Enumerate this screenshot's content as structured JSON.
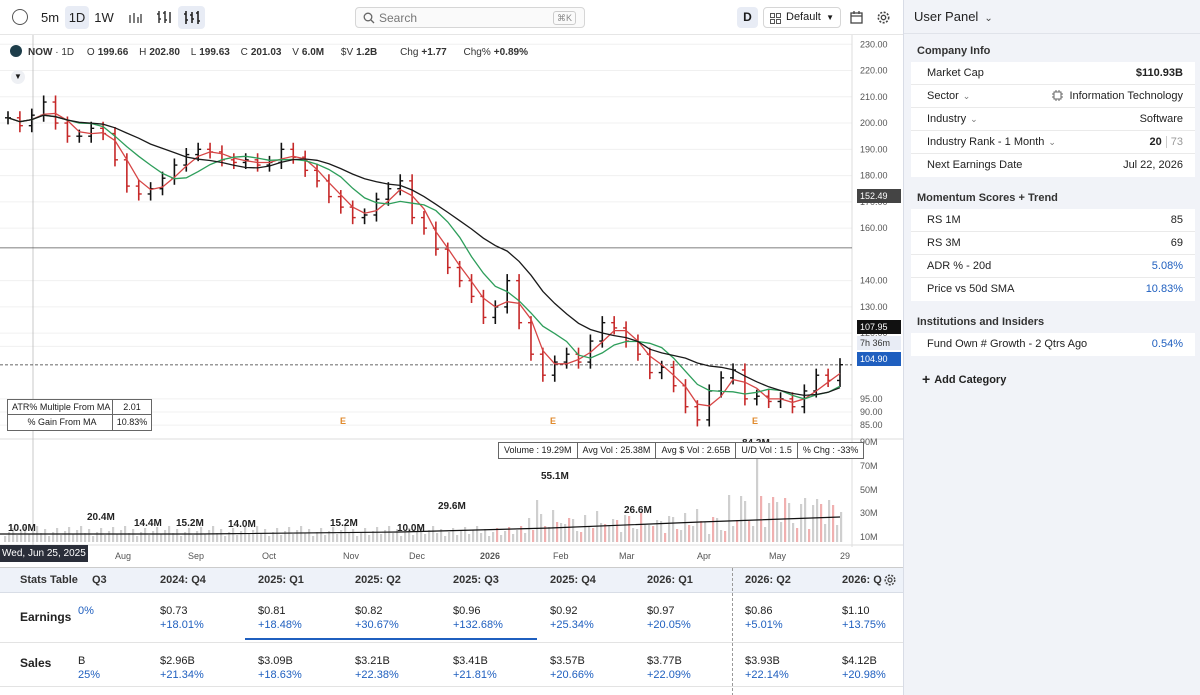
{
  "toolbar": {
    "timeframes": [
      "5m",
      "1D",
      "1W"
    ],
    "active_timeframe": "1D",
    "search_placeholder": "Search",
    "search_shortcut": "⌘K",
    "d_label": "D",
    "layout_label": "Default"
  },
  "legend": {
    "symbol": "NOW",
    "interval": "1D",
    "o_label": "O",
    "open": "199.66",
    "h_label": "H",
    "high": "202.80",
    "l_label": "L",
    "low": "199.63",
    "c_label": "C",
    "close": "201.03",
    "v_label": "V",
    "volume": "6.0M",
    "dv_label": "$V",
    "dollar_volume": "1.2B",
    "chg_label": "Chg",
    "chg": "+1.77",
    "chgp_label": "Chg%",
    "chg_pct": "+0.89%"
  },
  "atr_box": {
    "row1_label": "ATR% Multiple From MA",
    "row1_value": "2.01",
    "row2_label": "% Gain From MA",
    "row2_value": "10.83%"
  },
  "volume_box": {
    "volume": "Volume : 19.29M",
    "avg_vol": "Avg Vol : 25.38M",
    "avg_dollar_vol": "Avg $ Vol : 2.65B",
    "ud_vol": "U/D Vol : 1.5",
    "pct_chg": "% Chg : -33%"
  },
  "earnings_markers": [
    "E",
    "E",
    "E",
    "E"
  ],
  "crosshair_date": "Wed, Jun 25, 2025",
  "price_tags": {
    "level_line": "152.49",
    "last_price": "107.95",
    "countdown": "7h 36m",
    "ma_value": "104.90"
  },
  "colors": {
    "up": "#111111",
    "down": "#c62828",
    "ma_fast": "#d64545",
    "ma_mid": "#2e9e5b",
    "ma_slow": "#1a1a1a",
    "volume_bar": "#f0b0b0",
    "accent_blue": "#1f5fbf"
  },
  "chart_data": {
    "type": "ohlc",
    "price_axis": [
      "230.00",
      "220.00",
      "210.00",
      "200.00",
      "190.00",
      "180.00",
      "170.00",
      "160.00",
      "140.00",
      "130.00",
      "120.00",
      "115.00",
      "95.00",
      "90.00",
      "85.00"
    ],
    "volume_axis": [
      "90M",
      "70M",
      "50M",
      "30M",
      "10M"
    ],
    "x_labels": [
      "Aug",
      "Sep",
      "Oct",
      "Nov",
      "Dec",
      "2026",
      "Feb",
      "Mar",
      "Apr",
      "May",
      "29"
    ],
    "ylim": [
      82,
      232
    ],
    "volume_labels": [
      {
        "text": "10.0M",
        "x_label": "Jul"
      },
      {
        "text": "20.4M",
        "x_label": "Jul"
      },
      {
        "text": "14.4M",
        "x_label": "Aug"
      },
      {
        "text": "15.2M",
        "x_label": "Sep"
      },
      {
        "text": "14.0M",
        "x_label": "Sep"
      },
      {
        "text": "15.2M",
        "x_label": "Nov"
      },
      {
        "text": "10.0M",
        "x_label": "Dec"
      },
      {
        "text": "29.6M",
        "x_label": "Dec"
      },
      {
        "text": "55.1M",
        "x_label": "Jan"
      },
      {
        "text": "26.6M",
        "x_label": "Mar"
      },
      {
        "text": "84.3M",
        "x_label": "Apr"
      }
    ],
    "close_path": [
      202,
      199,
      203,
      208,
      200,
      195,
      195,
      198,
      196,
      186,
      176,
      173,
      175,
      179,
      184,
      188,
      190,
      189,
      186,
      185,
      186,
      184,
      185,
      190,
      187,
      182,
      178,
      172,
      168,
      164,
      165,
      171,
      175,
      178,
      164,
      160,
      152,
      145,
      140,
      134,
      126,
      130,
      140,
      124,
      112,
      104,
      109,
      112,
      109,
      117,
      124,
      122,
      117,
      112,
      105,
      107,
      100,
      92,
      87,
      98,
      103,
      106,
      95,
      96,
      94,
      95,
      92,
      98,
      104,
      102,
      108
    ]
  },
  "stats": {
    "title": "Stats Table",
    "columns": [
      "Q3",
      "2024: Q4",
      "2025: Q1",
      "2025: Q2",
      "2025: Q3",
      "2025: Q4",
      "2026: Q1",
      "2026: Q2",
      "2026: Q"
    ],
    "earnings_label": "Earnings",
    "sales_label": "Sales",
    "earnings": [
      {
        "v": "",
        "g": "0%"
      },
      {
        "v": "$0.73",
        "g": "+18.01%"
      },
      {
        "v": "$0.81",
        "g": "+18.48%"
      },
      {
        "v": "$0.82",
        "g": "+30.67%"
      },
      {
        "v": "$0.96",
        "g": "+132.68%"
      },
      {
        "v": "$0.92",
        "g": "+25.34%"
      },
      {
        "v": "$0.97",
        "g": "+20.05%"
      },
      {
        "v": "$0.86",
        "g": "+5.01%"
      },
      {
        "v": "$1.10",
        "g": "+13.75%"
      }
    ],
    "sales": [
      {
        "v": "B",
        "g": "25%"
      },
      {
        "v": "$2.96B",
        "g": "+21.34%"
      },
      {
        "v": "$3.09B",
        "g": "+18.63%"
      },
      {
        "v": "$3.21B",
        "g": "+22.38%"
      },
      {
        "v": "$3.41B",
        "g": "+21.81%"
      },
      {
        "v": "$3.57B",
        "g": "+20.66%"
      },
      {
        "v": "$3.77B",
        "g": "+22.09%"
      },
      {
        "v": "$3.93B",
        "g": "+22.14%"
      },
      {
        "v": "$4.12B",
        "g": "+20.98%"
      }
    ]
  },
  "panel": {
    "title": "User Panel",
    "company_info": {
      "title": "Company Info",
      "market_cap_label": "Market Cap",
      "market_cap": "$110.93B",
      "sector_label": "Sector",
      "sector": "Information Technology",
      "industry_label": "Industry",
      "industry": "Software",
      "rank_label": "Industry Rank - 1 Month",
      "rank": "20",
      "rank_total": "73",
      "earnings_date_label": "Next Earnings Date",
      "earnings_date": "Jul 22, 2026"
    },
    "momentum": {
      "title": "Momentum Scores + Trend",
      "rs1m_label": "RS 1M",
      "rs1m": "85",
      "rs3m_label": "RS 3M",
      "rs3m": "69",
      "adr_label": "ADR % - 20d",
      "adr": "5.08%",
      "sma_label": "Price vs 50d SMA",
      "sma": "10.83%"
    },
    "institutions": {
      "title": "Institutions and Insiders",
      "fund_label": "Fund Own # Growth - 2 Qtrs Ago",
      "fund": "0.54%"
    },
    "add_category": "Add Category"
  }
}
